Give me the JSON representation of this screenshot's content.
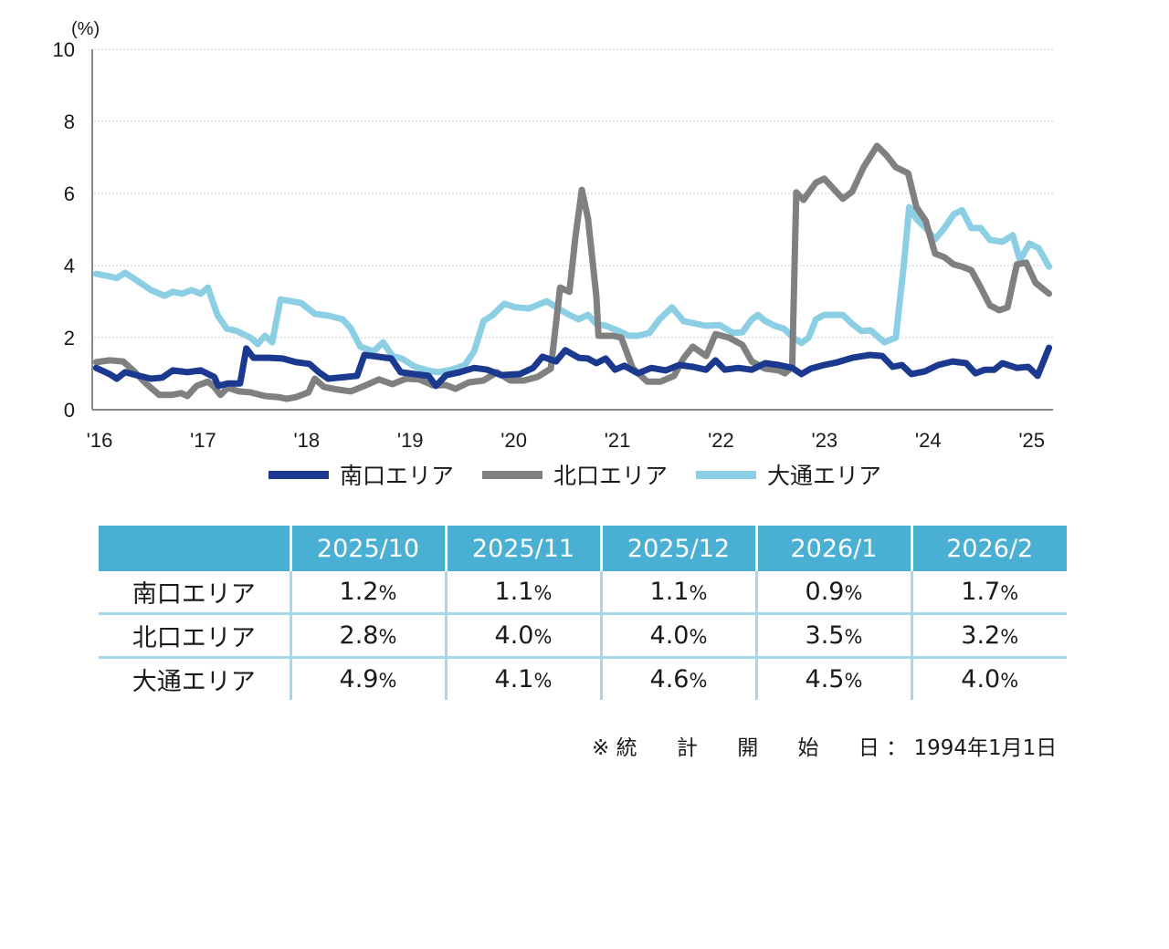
{
  "chart_data": {
    "type": "line",
    "title": "",
    "ylabel": "(%)",
    "xlabel": "",
    "ylim": [
      0,
      10
    ],
    "yticks": [
      "0",
      "2",
      "4",
      "6",
      "8",
      "10"
    ],
    "xlim": [
      2016.0,
      2025.25
    ],
    "xticks": [
      {
        "t": 2016,
        "label": "'16"
      },
      {
        "t": 2017,
        "label": "'17"
      },
      {
        "t": 2018,
        "label": "'18"
      },
      {
        "t": 2019,
        "label": "'19"
      },
      {
        "t": 2020,
        "label": "'20"
      },
      {
        "t": 2021,
        "label": "'21"
      },
      {
        "t": 2022,
        "label": "'22"
      },
      {
        "t": 2023,
        "label": "'23"
      },
      {
        "t": 2024,
        "label": "'24"
      },
      {
        "t": 2025,
        "label": "'25"
      }
    ],
    "grid": true,
    "legend_position": "bottom",
    "series": [
      {
        "name": "南口エリア",
        "color": "#1b3a8f",
        "points": [
          [
            2016.02,
            1.16
          ],
          [
            2016.15,
            0.99
          ],
          [
            2016.22,
            0.86
          ],
          [
            2016.3,
            1.04
          ],
          [
            2016.41,
            0.96
          ],
          [
            2016.55,
            0.86
          ],
          [
            2016.66,
            0.89
          ],
          [
            2016.76,
            1.09
          ],
          [
            2016.9,
            1.04
          ],
          [
            2017.03,
            1.09
          ],
          [
            2017.16,
            0.91
          ],
          [
            2017.2,
            0.66
          ],
          [
            2017.29,
            0.73
          ],
          [
            2017.41,
            0.73
          ],
          [
            2017.47,
            1.7
          ],
          [
            2017.54,
            1.44
          ],
          [
            2017.69,
            1.44
          ],
          [
            2017.82,
            1.42
          ],
          [
            2017.95,
            1.32
          ],
          [
            2018.08,
            1.27
          ],
          [
            2018.17,
            1.04
          ],
          [
            2018.26,
            0.86
          ],
          [
            2018.43,
            0.91
          ],
          [
            2018.54,
            0.94
          ],
          [
            2018.61,
            1.52
          ],
          [
            2018.74,
            1.47
          ],
          [
            2018.87,
            1.42
          ],
          [
            2018.96,
            1.04
          ],
          [
            2019.09,
            0.99
          ],
          [
            2019.23,
            0.94
          ],
          [
            2019.3,
            0.66
          ],
          [
            2019.4,
            0.96
          ],
          [
            2019.53,
            1.04
          ],
          [
            2019.67,
            1.16
          ],
          [
            2019.8,
            1.11
          ],
          [
            2019.93,
            0.96
          ],
          [
            2020.11,
            0.99
          ],
          [
            2020.24,
            1.16
          ],
          [
            2020.33,
            1.47
          ],
          [
            2020.46,
            1.34
          ],
          [
            2020.55,
            1.65
          ],
          [
            2020.68,
            1.44
          ],
          [
            2020.77,
            1.42
          ],
          [
            2020.85,
            1.29
          ],
          [
            2020.94,
            1.42
          ],
          [
            2021.03,
            1.11
          ],
          [
            2021.12,
            1.22
          ],
          [
            2021.25,
            1.01
          ],
          [
            2021.38,
            1.16
          ],
          [
            2021.52,
            1.09
          ],
          [
            2021.65,
            1.24
          ],
          [
            2021.78,
            1.19
          ],
          [
            2021.91,
            1.11
          ],
          [
            2022.0,
            1.37
          ],
          [
            2022.09,
            1.11
          ],
          [
            2022.22,
            1.16
          ],
          [
            2022.35,
            1.11
          ],
          [
            2022.48,
            1.29
          ],
          [
            2022.61,
            1.24
          ],
          [
            2022.74,
            1.16
          ],
          [
            2022.83,
            0.99
          ],
          [
            2022.92,
            1.14
          ],
          [
            2023.05,
            1.24
          ],
          [
            2023.18,
            1.32
          ],
          [
            2023.32,
            1.44
          ],
          [
            2023.49,
            1.52
          ],
          [
            2023.61,
            1.49
          ],
          [
            2023.71,
            1.19
          ],
          [
            2023.8,
            1.24
          ],
          [
            2023.89,
            0.99
          ],
          [
            2024.02,
            1.06
          ],
          [
            2024.15,
            1.24
          ],
          [
            2024.29,
            1.34
          ],
          [
            2024.42,
            1.29
          ],
          [
            2024.51,
            1.01
          ],
          [
            2024.6,
            1.11
          ],
          [
            2024.69,
            1.11
          ],
          [
            2024.77,
            1.29
          ],
          [
            2024.91,
            1.16
          ],
          [
            2025.02,
            1.19
          ],
          [
            2025.11,
            0.94
          ],
          [
            2025.22,
            1.72
          ]
        ]
      },
      {
        "name": "北口エリア",
        "color": "#808080",
        "points": [
          [
            2016.02,
            1.32
          ],
          [
            2016.15,
            1.37
          ],
          [
            2016.28,
            1.34
          ],
          [
            2016.37,
            1.11
          ],
          [
            2016.5,
            0.73
          ],
          [
            2016.63,
            0.41
          ],
          [
            2016.75,
            0.41
          ],
          [
            2016.84,
            0.46
          ],
          [
            2016.9,
            0.38
          ],
          [
            2016.99,
            0.66
          ],
          [
            2017.1,
            0.78
          ],
          [
            2017.16,
            0.63
          ],
          [
            2017.22,
            0.41
          ],
          [
            2017.29,
            0.61
          ],
          [
            2017.4,
            0.51
          ],
          [
            2017.51,
            0.48
          ],
          [
            2017.65,
            0.38
          ],
          [
            2017.78,
            0.35
          ],
          [
            2017.86,
            0.3
          ],
          [
            2017.95,
            0.35
          ],
          [
            2018.07,
            0.48
          ],
          [
            2018.13,
            0.86
          ],
          [
            2018.22,
            0.63
          ],
          [
            2018.35,
            0.56
          ],
          [
            2018.48,
            0.51
          ],
          [
            2018.61,
            0.66
          ],
          [
            2018.75,
            0.84
          ],
          [
            2018.88,
            0.71
          ],
          [
            2019.01,
            0.86
          ],
          [
            2019.14,
            0.84
          ],
          [
            2019.27,
            0.68
          ],
          [
            2019.4,
            0.68
          ],
          [
            2019.49,
            0.58
          ],
          [
            2019.62,
            0.76
          ],
          [
            2019.76,
            0.81
          ],
          [
            2019.89,
            1.04
          ],
          [
            2020.02,
            0.81
          ],
          [
            2020.15,
            0.81
          ],
          [
            2020.28,
            0.91
          ],
          [
            2020.41,
            1.14
          ],
          [
            2020.5,
            3.39
          ],
          [
            2020.59,
            3.27
          ],
          [
            2020.65,
            4.84
          ],
          [
            2020.71,
            6.1
          ],
          [
            2020.77,
            5.29
          ],
          [
            2020.85,
            3.14
          ],
          [
            2020.87,
            2.05
          ],
          [
            2021.01,
            2.05
          ],
          [
            2021.09,
            2.0
          ],
          [
            2021.2,
            1.16
          ],
          [
            2021.34,
            0.78
          ],
          [
            2021.47,
            0.78
          ],
          [
            2021.6,
            0.94
          ],
          [
            2021.69,
            1.42
          ],
          [
            2021.78,
            1.75
          ],
          [
            2021.91,
            1.49
          ],
          [
            2022.0,
            2.1
          ],
          [
            2022.13,
            2.0
          ],
          [
            2022.26,
            1.8
          ],
          [
            2022.35,
            1.34
          ],
          [
            2022.48,
            1.14
          ],
          [
            2022.61,
            1.09
          ],
          [
            2022.67,
            1.01
          ],
          [
            2022.74,
            1.19
          ],
          [
            2022.78,
            6.03
          ],
          [
            2022.85,
            5.82
          ],
          [
            2022.97,
            6.3
          ],
          [
            2023.05,
            6.41
          ],
          [
            2023.14,
            6.13
          ],
          [
            2023.23,
            5.85
          ],
          [
            2023.32,
            6.05
          ],
          [
            2023.43,
            6.73
          ],
          [
            2023.56,
            7.32
          ],
          [
            2023.65,
            7.06
          ],
          [
            2023.74,
            6.73
          ],
          [
            2023.86,
            6.56
          ],
          [
            2023.94,
            5.62
          ],
          [
            2024.03,
            5.24
          ],
          [
            2024.12,
            4.33
          ],
          [
            2024.21,
            4.23
          ],
          [
            2024.3,
            4.03
          ],
          [
            2024.38,
            3.97
          ],
          [
            2024.47,
            3.87
          ],
          [
            2024.56,
            3.39
          ],
          [
            2024.65,
            2.89
          ],
          [
            2024.74,
            2.76
          ],
          [
            2024.82,
            2.84
          ],
          [
            2024.91,
            4.03
          ],
          [
            2025.0,
            4.08
          ],
          [
            2025.09,
            3.52
          ],
          [
            2025.22,
            3.22
          ]
        ]
      },
      {
        "name": "大通エリア",
        "color": "#8ccfe4",
        "points": [
          [
            2016.02,
            3.77
          ],
          [
            2016.15,
            3.7
          ],
          [
            2016.22,
            3.65
          ],
          [
            2016.3,
            3.8
          ],
          [
            2016.41,
            3.59
          ],
          [
            2016.55,
            3.32
          ],
          [
            2016.68,
            3.16
          ],
          [
            2016.76,
            3.27
          ],
          [
            2016.85,
            3.22
          ],
          [
            2016.94,
            3.32
          ],
          [
            2017.03,
            3.22
          ],
          [
            2017.1,
            3.39
          ],
          [
            2017.19,
            2.63
          ],
          [
            2017.28,
            2.25
          ],
          [
            2017.38,
            2.18
          ],
          [
            2017.51,
            2.0
          ],
          [
            2017.58,
            1.82
          ],
          [
            2017.65,
            2.05
          ],
          [
            2017.72,
            1.87
          ],
          [
            2017.8,
            3.06
          ],
          [
            2017.9,
            3.01
          ],
          [
            2018.0,
            2.96
          ],
          [
            2018.13,
            2.66
          ],
          [
            2018.26,
            2.61
          ],
          [
            2018.4,
            2.51
          ],
          [
            2018.48,
            2.25
          ],
          [
            2018.57,
            1.75
          ],
          [
            2018.7,
            1.62
          ],
          [
            2018.79,
            1.87
          ],
          [
            2018.88,
            1.49
          ],
          [
            2018.97,
            1.42
          ],
          [
            2019.1,
            1.19
          ],
          [
            2019.22,
            1.09
          ],
          [
            2019.32,
            1.04
          ],
          [
            2019.45,
            1.11
          ],
          [
            2019.58,
            1.24
          ],
          [
            2019.67,
            1.62
          ],
          [
            2019.76,
            2.46
          ],
          [
            2019.85,
            2.63
          ],
          [
            2019.96,
            2.94
          ],
          [
            2020.07,
            2.84
          ],
          [
            2020.2,
            2.81
          ],
          [
            2020.37,
            3.01
          ],
          [
            2020.48,
            2.81
          ],
          [
            2020.59,
            2.63
          ],
          [
            2020.68,
            2.51
          ],
          [
            2020.77,
            2.63
          ],
          [
            2020.85,
            2.38
          ],
          [
            2020.94,
            2.33
          ],
          [
            2021.07,
            2.18
          ],
          [
            2021.16,
            2.05
          ],
          [
            2021.25,
            2.05
          ],
          [
            2021.36,
            2.13
          ],
          [
            2021.46,
            2.51
          ],
          [
            2021.58,
            2.84
          ],
          [
            2021.69,
            2.46
          ],
          [
            2021.82,
            2.38
          ],
          [
            2021.91,
            2.33
          ],
          [
            2022.04,
            2.35
          ],
          [
            2022.17,
            2.13
          ],
          [
            2022.26,
            2.15
          ],
          [
            2022.35,
            2.51
          ],
          [
            2022.41,
            2.63
          ],
          [
            2022.48,
            2.46
          ],
          [
            2022.57,
            2.33
          ],
          [
            2022.66,
            2.25
          ],
          [
            2022.75,
            2.0
          ],
          [
            2022.83,
            1.85
          ],
          [
            2022.9,
            2.0
          ],
          [
            2022.97,
            2.51
          ],
          [
            2023.05,
            2.63
          ],
          [
            2023.14,
            2.63
          ],
          [
            2023.23,
            2.63
          ],
          [
            2023.32,
            2.38
          ],
          [
            2023.41,
            2.18
          ],
          [
            2023.5,
            2.2
          ],
          [
            2023.63,
            1.87
          ],
          [
            2023.74,
            2.0
          ],
          [
            2023.82,
            4.05
          ],
          [
            2023.87,
            5.62
          ],
          [
            2023.94,
            5.29
          ],
          [
            2024.03,
            5.04
          ],
          [
            2024.12,
            4.73
          ],
          [
            2024.21,
            5.04
          ],
          [
            2024.3,
            5.42
          ],
          [
            2024.38,
            5.54
          ],
          [
            2024.47,
            5.04
          ],
          [
            2024.56,
            5.04
          ],
          [
            2024.65,
            4.71
          ],
          [
            2024.77,
            4.66
          ],
          [
            2024.87,
            4.84
          ],
          [
            2024.94,
            4.15
          ],
          [
            2025.03,
            4.61
          ],
          [
            2025.12,
            4.48
          ],
          [
            2025.22,
            3.97
          ]
        ]
      }
    ]
  },
  "legend": [
    {
      "label": "南口エリア",
      "color": "#1b3a8f"
    },
    {
      "label": "北口エリア",
      "color": "#808080"
    },
    {
      "label": "大通エリア",
      "color": "#8ccfe4"
    }
  ],
  "table": {
    "header_color": "#4ab0d3",
    "columns": [
      "",
      "2025/10",
      "2025/11",
      "2025/12",
      "2026/1",
      "2026/2"
    ],
    "rows": [
      {
        "label": "南口エリア",
        "values": [
          "1.2",
          "1.1",
          "1.1",
          "0.9",
          "1.7"
        ]
      },
      {
        "label": "北口エリア",
        "values": [
          "2.8",
          "4.0",
          "4.0",
          "3.5",
          "3.2"
        ]
      },
      {
        "label": "大通エリア",
        "values": [
          "4.9",
          "4.1",
          "4.6",
          "4.5",
          "4.0"
        ]
      }
    ],
    "unit": "%"
  },
  "note": {
    "mark": "※",
    "chars": [
      "統",
      "計",
      "開",
      "始",
      "日"
    ],
    "colon": "：",
    "date": "1994年1月1日"
  }
}
